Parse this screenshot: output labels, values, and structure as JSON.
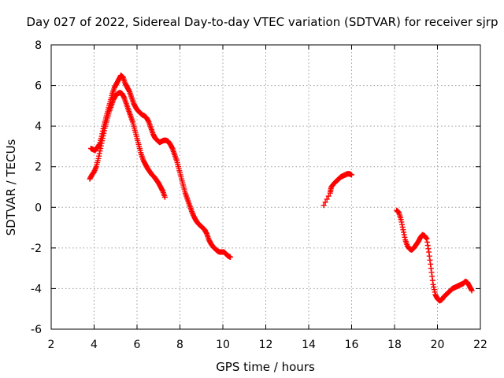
{
  "chart_data": {
    "type": "scatter",
    "title": "Day 027 of 2022, Sidereal Day-to-day VTEC variation (SDTVAR) for receiver sjrp",
    "xlabel": "GPS time / hours",
    "ylabel": "SDTVAR / TECUs",
    "xlim": [
      2,
      22
    ],
    "ylim": [
      -6,
      8
    ],
    "xticks": [
      "2",
      "4",
      "6",
      "8",
      "10",
      "12",
      "14",
      "16",
      "18",
      "20",
      "22"
    ],
    "yticks": [
      "-6",
      "-4",
      "-2",
      "0",
      "2",
      "4",
      "6",
      "8"
    ],
    "xtick_values": [
      2,
      4,
      6,
      8,
      10,
      12,
      14,
      16,
      18,
      20,
      22
    ],
    "ytick_values": [
      -6,
      -4,
      -2,
      0,
      2,
      4,
      6,
      8
    ],
    "grid": true,
    "marker": "+",
    "color": "#ff0000",
    "series": [
      {
        "name": "segment-1-upper",
        "points": [
          [
            3.85,
            2.9
          ],
          [
            3.95,
            2.85
          ],
          [
            4.05,
            2.8
          ],
          [
            4.15,
            2.95
          ],
          [
            4.25,
            3.1
          ],
          [
            4.35,
            3.5
          ],
          [
            4.45,
            4.0
          ],
          [
            4.55,
            4.4
          ],
          [
            4.65,
            4.8
          ],
          [
            4.75,
            5.2
          ],
          [
            4.85,
            5.6
          ],
          [
            4.95,
            5.9
          ],
          [
            5.05,
            6.1
          ],
          [
            5.15,
            6.3
          ],
          [
            5.25,
            6.5
          ],
          [
            5.35,
            6.4
          ],
          [
            5.45,
            6.1
          ],
          [
            5.55,
            5.9
          ],
          [
            5.65,
            5.7
          ],
          [
            5.75,
            5.4
          ],
          [
            5.85,
            5.1
          ],
          [
            5.95,
            4.9
          ],
          [
            6.05,
            4.75
          ],
          [
            6.15,
            4.65
          ],
          [
            6.25,
            4.55
          ],
          [
            6.35,
            4.5
          ],
          [
            6.45,
            4.4
          ],
          [
            6.55,
            4.2
          ],
          [
            6.65,
            3.9
          ],
          [
            6.75,
            3.6
          ],
          [
            6.85,
            3.4
          ],
          [
            6.95,
            3.3
          ],
          [
            7.05,
            3.2
          ],
          [
            7.15,
            3.25
          ],
          [
            7.25,
            3.3
          ],
          [
            7.35,
            3.3
          ],
          [
            7.45,
            3.25
          ],
          [
            7.55,
            3.1
          ],
          [
            7.65,
            2.9
          ],
          [
            7.75,
            2.6
          ],
          [
            7.85,
            2.3
          ],
          [
            7.95,
            1.9
          ],
          [
            8.05,
            1.5
          ],
          [
            8.15,
            1.1
          ],
          [
            8.25,
            0.7
          ],
          [
            8.35,
            0.4
          ],
          [
            8.45,
            0.1
          ],
          [
            8.55,
            -0.2
          ],
          [
            8.65,
            -0.45
          ],
          [
            8.75,
            -0.65
          ],
          [
            8.85,
            -0.8
          ],
          [
            8.95,
            -0.9
          ],
          [
            9.05,
            -1.0
          ],
          [
            9.15,
            -1.1
          ],
          [
            9.25,
            -1.3
          ],
          [
            9.35,
            -1.6
          ],
          [
            9.45,
            -1.8
          ],
          [
            9.55,
            -1.95
          ],
          [
            9.65,
            -2.05
          ],
          [
            9.75,
            -2.15
          ],
          [
            9.85,
            -2.2
          ],
          [
            9.95,
            -2.2
          ],
          [
            10.05,
            -2.2
          ],
          [
            10.15,
            -2.3
          ],
          [
            10.25,
            -2.4
          ],
          [
            10.35,
            -2.45
          ]
        ]
      },
      {
        "name": "segment-1-lower",
        "points": [
          [
            3.8,
            1.4
          ],
          [
            3.9,
            1.6
          ],
          [
            4.0,
            1.75
          ],
          [
            4.1,
            2.0
          ],
          [
            4.2,
            2.4
          ],
          [
            4.3,
            2.9
          ],
          [
            4.4,
            3.4
          ],
          [
            4.5,
            3.9
          ],
          [
            4.6,
            4.3
          ],
          [
            4.7,
            4.7
          ],
          [
            4.8,
            5.0
          ],
          [
            4.9,
            5.3
          ],
          [
            5.0,
            5.5
          ],
          [
            5.1,
            5.6
          ],
          [
            5.2,
            5.65
          ],
          [
            5.3,
            5.6
          ],
          [
            5.4,
            5.4
          ],
          [
            5.5,
            5.1
          ],
          [
            5.6,
            4.8
          ],
          [
            5.7,
            4.5
          ],
          [
            5.8,
            4.2
          ],
          [
            5.9,
            3.8
          ],
          [
            6.0,
            3.4
          ],
          [
            6.1,
            3.0
          ],
          [
            6.2,
            2.6
          ],
          [
            6.3,
            2.3
          ],
          [
            6.4,
            2.1
          ],
          [
            6.5,
            1.9
          ],
          [
            6.6,
            1.75
          ],
          [
            6.7,
            1.6
          ],
          [
            6.8,
            1.5
          ],
          [
            6.9,
            1.35
          ],
          [
            7.0,
            1.2
          ],
          [
            7.1,
            1.0
          ],
          [
            7.2,
            0.8
          ],
          [
            7.3,
            0.5
          ]
        ]
      },
      {
        "name": "segment-2",
        "points": [
          [
            14.7,
            0.1
          ],
          [
            15.0,
            0.7
          ],
          [
            15.05,
            1.0
          ],
          [
            15.2,
            1.2
          ],
          [
            15.3,
            1.3
          ],
          [
            15.4,
            1.4
          ],
          [
            15.5,
            1.5
          ],
          [
            15.6,
            1.55
          ],
          [
            15.7,
            1.6
          ],
          [
            15.8,
            1.65
          ],
          [
            15.9,
            1.65
          ],
          [
            16.0,
            1.6
          ]
        ]
      },
      {
        "name": "segment-3",
        "points": [
          [
            18.1,
            -0.15
          ],
          [
            18.2,
            -0.25
          ],
          [
            18.3,
            -0.6
          ],
          [
            18.4,
            -1.1
          ],
          [
            18.5,
            -1.6
          ],
          [
            18.6,
            -1.9
          ],
          [
            18.7,
            -2.05
          ],
          [
            18.8,
            -2.1
          ],
          [
            18.9,
            -2.0
          ],
          [
            19.0,
            -1.85
          ],
          [
            19.1,
            -1.7
          ],
          [
            19.2,
            -1.5
          ],
          [
            19.3,
            -1.35
          ],
          [
            19.4,
            -1.4
          ],
          [
            19.5,
            -1.55
          ],
          [
            19.6,
            -2.2
          ],
          [
            19.7,
            -3.0
          ],
          [
            19.8,
            -3.8
          ],
          [
            19.9,
            -4.3
          ],
          [
            20.0,
            -4.5
          ],
          [
            20.1,
            -4.6
          ],
          [
            20.2,
            -4.55
          ],
          [
            20.3,
            -4.4
          ],
          [
            20.4,
            -4.3
          ],
          [
            20.5,
            -4.2
          ],
          [
            20.6,
            -4.1
          ],
          [
            20.7,
            -4.0
          ],
          [
            20.8,
            -3.95
          ],
          [
            20.9,
            -3.9
          ],
          [
            21.0,
            -3.85
          ],
          [
            21.1,
            -3.8
          ],
          [
            21.2,
            -3.75
          ],
          [
            21.3,
            -3.65
          ],
          [
            21.4,
            -3.7
          ],
          [
            21.5,
            -3.9
          ],
          [
            21.6,
            -4.1
          ]
        ]
      }
    ]
  }
}
